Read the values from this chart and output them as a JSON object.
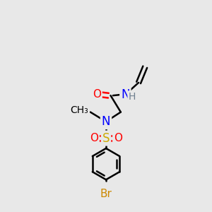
{
  "background_color": "#e8e8e8",
  "atom_colors": {
    "C": "#000000",
    "N": "#0000ff",
    "O": "#ff0000",
    "S": "#ccaa00",
    "Br": "#cc8800",
    "H": "#708090"
  },
  "bond_color": "#000000",
  "bond_width": 1.8,
  "figsize": [
    3.0,
    3.0
  ],
  "dpi": 100,
  "font_size": 11
}
